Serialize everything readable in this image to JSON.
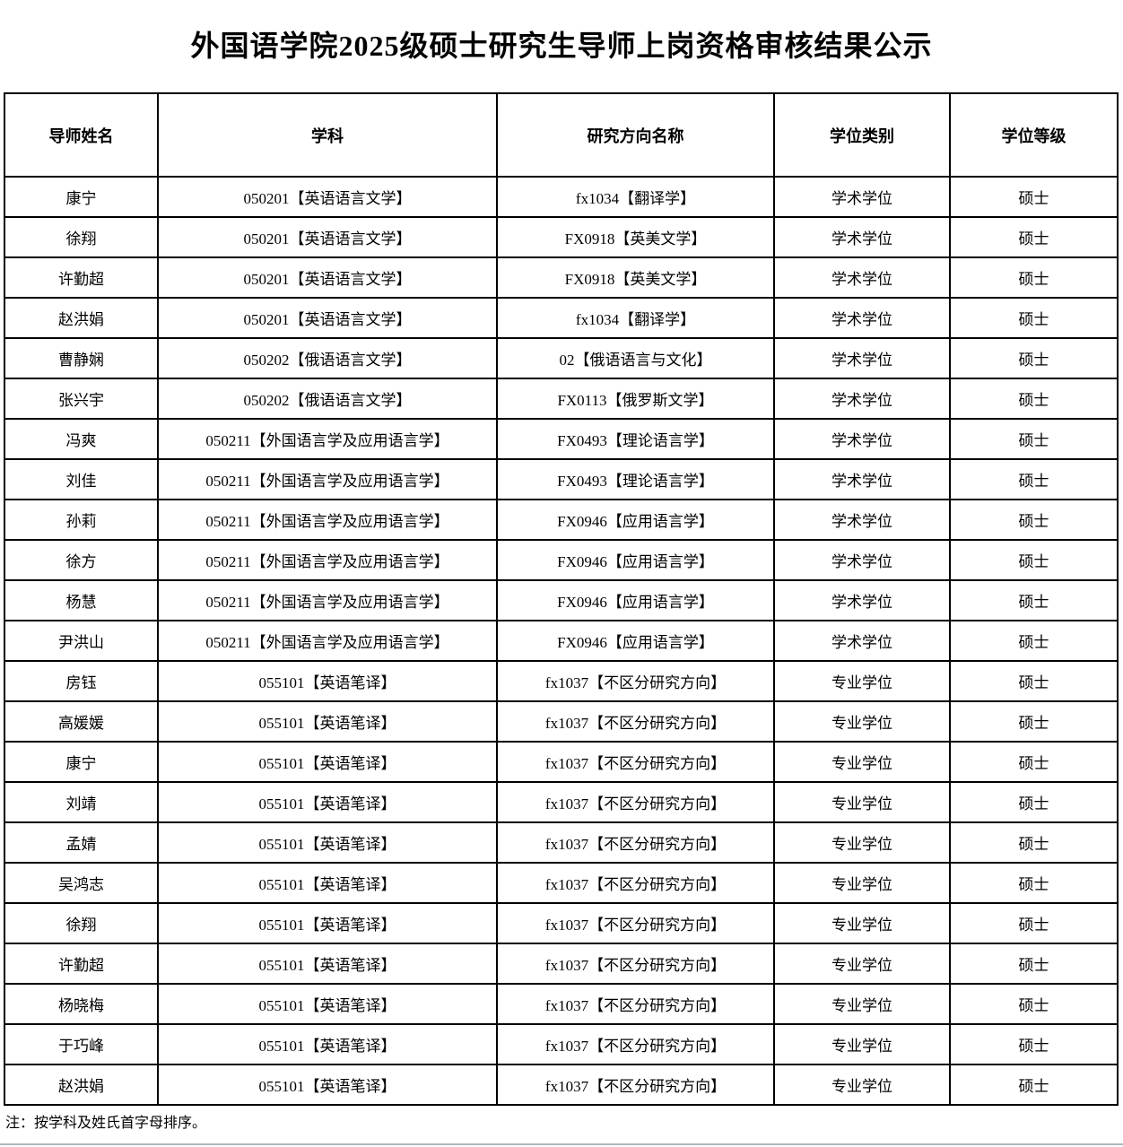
{
  "page": {
    "title": "外国语学院2025级硕士研究生导师上岗资格审核结果公示",
    "note": "注：按学科及姓氏首字母排序。"
  },
  "table": {
    "columns": [
      "导师姓名",
      "学科",
      "研究方向名称",
      "学位类别",
      "学位等级"
    ],
    "rows": [
      [
        "康宁",
        "050201【英语语言文学】",
        "fx1034【翻译学】",
        "学术学位",
        "硕士"
      ],
      [
        "徐翔",
        "050201【英语语言文学】",
        "FX0918【英美文学】",
        "学术学位",
        "硕士"
      ],
      [
        "许勤超",
        "050201【英语语言文学】",
        "FX0918【英美文学】",
        "学术学位",
        "硕士"
      ],
      [
        "赵洪娟",
        "050201【英语语言文学】",
        "fx1034【翻译学】",
        "学术学位",
        "硕士"
      ],
      [
        "曹静娴",
        "050202【俄语语言文学】",
        "02【俄语语言与文化】",
        "学术学位",
        "硕士"
      ],
      [
        "张兴宇",
        "050202【俄语语言文学】",
        "FX0113【俄罗斯文学】",
        "学术学位",
        "硕士"
      ],
      [
        "冯爽",
        "050211【外国语言学及应用语言学】",
        "FX0493【理论语言学】",
        "学术学位",
        "硕士"
      ],
      [
        "刘佳",
        "050211【外国语言学及应用语言学】",
        "FX0493【理论语言学】",
        "学术学位",
        "硕士"
      ],
      [
        "孙莉",
        "050211【外国语言学及应用语言学】",
        "FX0946【应用语言学】",
        "学术学位",
        "硕士"
      ],
      [
        "徐方",
        "050211【外国语言学及应用语言学】",
        "FX0946【应用语言学】",
        "学术学位",
        "硕士"
      ],
      [
        "杨慧",
        "050211【外国语言学及应用语言学】",
        "FX0946【应用语言学】",
        "学术学位",
        "硕士"
      ],
      [
        "尹洪山",
        "050211【外国语言学及应用语言学】",
        "FX0946【应用语言学】",
        "学术学位",
        "硕士"
      ],
      [
        "房钰",
        "055101【英语笔译】",
        "fx1037【不区分研究方向】",
        "专业学位",
        "硕士"
      ],
      [
        "高媛媛",
        "055101【英语笔译】",
        "fx1037【不区分研究方向】",
        "专业学位",
        "硕士"
      ],
      [
        "康宁",
        "055101【英语笔译】",
        "fx1037【不区分研究方向】",
        "专业学位",
        "硕士"
      ],
      [
        "刘靖",
        "055101【英语笔译】",
        "fx1037【不区分研究方向】",
        "专业学位",
        "硕士"
      ],
      [
        "孟婧",
        "055101【英语笔译】",
        "fx1037【不区分研究方向】",
        "专业学位",
        "硕士"
      ],
      [
        "吴鸿志",
        "055101【英语笔译】",
        "fx1037【不区分研究方向】",
        "专业学位",
        "硕士"
      ],
      [
        "徐翔",
        "055101【英语笔译】",
        "fx1037【不区分研究方向】",
        "专业学位",
        "硕士"
      ],
      [
        "许勤超",
        "055101【英语笔译】",
        "fx1037【不区分研究方向】",
        "专业学位",
        "硕士"
      ],
      [
        "杨晓梅",
        "055101【英语笔译】",
        "fx1037【不区分研究方向】",
        "专业学位",
        "硕士"
      ],
      [
        "于巧峰",
        "055101【英语笔译】",
        "fx1037【不区分研究方向】",
        "专业学位",
        "硕士"
      ],
      [
        "赵洪娟",
        "055101【英语笔译】",
        "fx1037【不区分研究方向】",
        "专业学位",
        "硕士"
      ]
    ]
  },
  "colors": {
    "text": "#000000",
    "table_border": "#000000",
    "background": "#ffffff",
    "bottom_divider": "#b0b6b9"
  }
}
